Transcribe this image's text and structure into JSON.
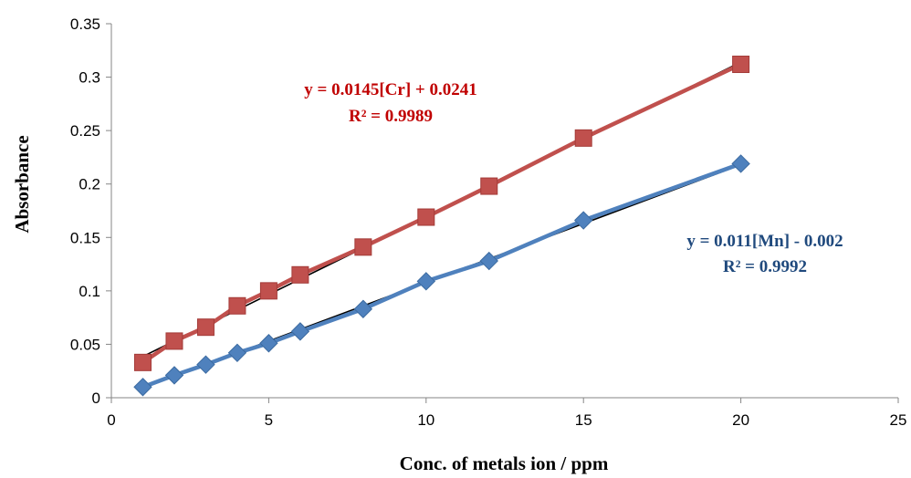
{
  "chart_data": {
    "type": "scatter",
    "xlabel": "Conc. of metals ion / ppm",
    "ylabel": "Absorbance",
    "xlim": [
      0,
      25
    ],
    "ylim": [
      0,
      0.35
    ],
    "x_ticks": [
      "0",
      "5",
      "10",
      "15",
      "20",
      "25"
    ],
    "y_ticks": [
      "0",
      "0.05",
      "0.1",
      "0.15",
      "0.2",
      "0.25",
      "0.3",
      "0.35"
    ],
    "grid": false,
    "series": [
      {
        "marker": "square",
        "color": "#c0504d",
        "points": [
          {
            "x": 1,
            "y": 0.033
          },
          {
            "x": 2,
            "y": 0.053
          },
          {
            "x": 3,
            "y": 0.066
          },
          {
            "x": 4,
            "y": 0.086
          },
          {
            "x": 5,
            "y": 0.1
          },
          {
            "x": 6,
            "y": 0.115
          },
          {
            "x": 8,
            "y": 0.141
          },
          {
            "x": 10,
            "y": 0.169
          },
          {
            "x": 12,
            "y": 0.198
          },
          {
            "x": 15,
            "y": 0.243
          },
          {
            "x": 20,
            "y": 0.312
          }
        ],
        "trendline": {
          "slope": 0.0145,
          "intercept": 0.0241,
          "color": "#000000"
        },
        "equation": "y = 0.0145[Cr] + 0.0241",
        "r_squared": "R² = 0.9989",
        "label_color": "#c00000"
      },
      {
        "marker": "diamond",
        "color": "#4f81bd",
        "points": [
          {
            "x": 1,
            "y": 0.01
          },
          {
            "x": 2,
            "y": 0.021
          },
          {
            "x": 3,
            "y": 0.031
          },
          {
            "x": 4,
            "y": 0.042
          },
          {
            "x": 5,
            "y": 0.051
          },
          {
            "x": 6,
            "y": 0.062
          },
          {
            "x": 8,
            "y": 0.083
          },
          {
            "x": 10,
            "y": 0.109
          },
          {
            "x": 12,
            "y": 0.128
          },
          {
            "x": 15,
            "y": 0.166
          },
          {
            "x": 20,
            "y": 0.219
          }
        ],
        "trendline": {
          "slope": 0.011,
          "intercept": -0.002,
          "color": "#000000"
        },
        "equation": "y = 0.011[Mn] - 0.002",
        "r_squared": "R² = 0.9992",
        "label_color": "#1f497d"
      }
    ]
  }
}
